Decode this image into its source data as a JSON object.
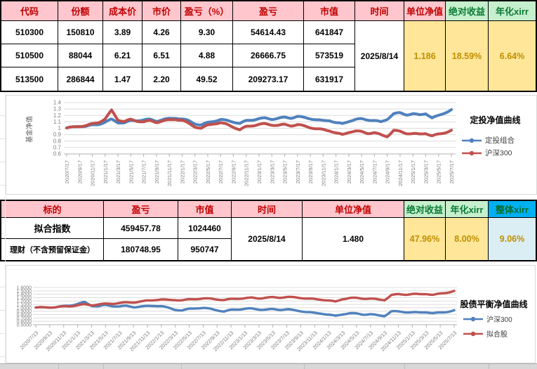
{
  "sheet": {
    "table1": {
      "headers": [
        "代码",
        "份额",
        "成本价",
        "市价",
        "盈亏（%）",
        "盈亏",
        "市值",
        "时间",
        "单位净值",
        "绝对收益",
        "年化xirr"
      ],
      "rows": [
        {
          "code": "510300",
          "shares": "150810",
          "cost": "3.89",
          "price": "4.26",
          "pl_pct": "9.30",
          "pl": "54614.43",
          "mv": "641847"
        },
        {
          "code": "510500",
          "shares": "88044",
          "cost": "6.21",
          "price": "6.51",
          "pl_pct": "4.88",
          "pl": "26666.75",
          "mv": "573519"
        },
        {
          "code": "513500",
          "shares": "286844",
          "cost": "1.47",
          "price": "2.20",
          "pl_pct": "49.52",
          "pl": "209273.17",
          "mv": "631917"
        }
      ],
      "date": "2025/8/14",
      "unit_nav": "1.186",
      "abs_return": "18.59%",
      "annual_xirr": "6.64%"
    },
    "table2": {
      "headers": [
        "标的",
        "盈亏",
        "市值",
        "时间",
        "单位净值",
        "绝对收益",
        "年化xirr",
        "整体xirr"
      ],
      "rows": [
        {
          "name": "拟合指数",
          "pl": "459457.78",
          "mv": "1024460"
        },
        {
          "name": "理财（不含预留保证金）",
          "pl": "180748.95",
          "mv": "950747"
        }
      ],
      "date": "2025/8/14",
      "unit_nav": "1.480",
      "abs_return": "47.96%",
      "annual_xirr": "8.00%",
      "overall_xirr": "9.06%"
    }
  },
  "chart_data": [
    {
      "type": "line",
      "title": "定投净值曲线",
      "ylabel": "基金净值",
      "ylim": [
        0.6,
        1.4
      ],
      "y_ticks": [
        "1.4",
        "1.3",
        "1.2",
        "1.1",
        "1",
        "0.9",
        "0.8",
        "0.7",
        "0.6"
      ],
      "grid": true,
      "legend_position": "right",
      "x_label_rotation": "vertical",
      "values_frequency": "monthly",
      "tick_frequency": "bimonthly",
      "x_tick_labels": [
        "2020/7/17",
        "2020/9/17",
        "2020/11/17",
        "2021/1/17",
        "2021/3/17",
        "2021/5/17",
        "2021/7/17",
        "2021/9/17",
        "2021/11/17",
        "2022/1/17",
        "2022/3/17",
        "2022/5/17",
        "2022/7/17",
        "2022/9/17",
        "2022/11/17",
        "2023/1/17",
        "2023/3/17",
        "2023/5/17",
        "2023/7/17",
        "2023/9/17",
        "2023/11/17",
        "2024/1/17",
        "2024/3/17",
        "2024/5/17",
        "2024/7/17",
        "2024/9/17",
        "2024/11/17",
        "2025/1/17",
        "2025/3/17",
        "2025/5/17",
        "2025/7/17"
      ],
      "series": [
        {
          "name": "定投组合",
          "color": "#4F81BD",
          "values": [
            1.0,
            1.01,
            1.03,
            1.03,
            1.05,
            1.07,
            1.1,
            1.14,
            1.09,
            1.08,
            1.11,
            1.12,
            1.13,
            1.14,
            1.12,
            1.14,
            1.15,
            1.16,
            1.14,
            1.11,
            1.07,
            1.05,
            1.09,
            1.12,
            1.14,
            1.12,
            1.1,
            1.07,
            1.11,
            1.13,
            1.15,
            1.16,
            1.15,
            1.16,
            1.17,
            1.16,
            1.18,
            1.16,
            1.15,
            1.13,
            1.12,
            1.13,
            1.09,
            1.07,
            1.11,
            1.13,
            1.14,
            1.13,
            1.12,
            1.1,
            1.15,
            1.23,
            1.24,
            1.21,
            1.22,
            1.2,
            1.23,
            1.16,
            1.2,
            1.25,
            1.29
          ]
        },
        {
          "name": "沪深300",
          "color": "#C0504D",
          "values": [
            1.0,
            1.01,
            1.03,
            1.04,
            1.07,
            1.1,
            1.15,
            1.28,
            1.13,
            1.1,
            1.13,
            1.11,
            1.1,
            1.12,
            1.1,
            1.12,
            1.13,
            1.14,
            1.12,
            1.07,
            1.02,
            1.0,
            1.05,
            1.08,
            1.09,
            1.06,
            1.02,
            0.97,
            1.02,
            1.04,
            1.06,
            1.07,
            1.06,
            1.05,
            1.06,
            1.04,
            1.05,
            1.03,
            1.01,
            0.99,
            0.98,
            0.97,
            0.93,
            0.9,
            0.94,
            0.95,
            0.94,
            0.92,
            0.93,
            0.9,
            0.88,
            0.97,
            0.95,
            0.92,
            0.91,
            0.9,
            0.92,
            0.88,
            0.91,
            0.94,
            0.97
          ]
        }
      ]
    },
    {
      "type": "line",
      "title": "股债平衡净值曲线",
      "ylabel": "",
      "ylim": [
        0.5,
        1.6
      ],
      "y_ticks": [
        "1.6000",
        "1.5000",
        "1.4000",
        "1.3000",
        "1.2000",
        "1.1000",
        "1.0000",
        "0.9000",
        "0.8000",
        "0.7000",
        "0.6000",
        "0.5000"
      ],
      "grid": true,
      "legend_position": "right",
      "x_label_rotation": "45deg",
      "values_frequency": "monthly",
      "tick_frequency": "bimonthly",
      "x_tick_labels": [
        "2020/7/13",
        "2020/9/13",
        "2020/11/13",
        "2021/1/13",
        "2021/3/13",
        "2021/5/13",
        "2021/7/13",
        "2021/9/13",
        "2021/11/13",
        "2022/1/13",
        "2022/3/13",
        "2022/5/13",
        "2022/7/13",
        "2022/9/13",
        "2022/11/13",
        "2023/1/13",
        "2023/3/13",
        "2023/5/13",
        "2023/7/13",
        "2023/9/13",
        "2023/11/13",
        "2024/1/13",
        "2024/3/13",
        "2024/5/13",
        "2024/7/13",
        "2024/9/13",
        "2024/11/13",
        "2025/1/13",
        "2025/3/13",
        "2025/5/13",
        "2025/7/13"
      ],
      "series": [
        {
          "name": "沪深300",
          "color": "#4F81BD",
          "values": [
            1.0,
            1.0,
            1.01,
            1.02,
            1.05,
            1.08,
            1.12,
            1.17,
            1.06,
            1.04,
            1.07,
            1.05,
            1.04,
            1.06,
            1.03,
            1.04,
            1.05,
            1.06,
            1.04,
            0.99,
            0.94,
            0.92,
            0.97,
            1.0,
            1.0,
            0.97,
            0.93,
            0.88,
            0.93,
            0.95,
            0.97,
            0.98,
            0.96,
            0.95,
            0.96,
            0.94,
            0.95,
            0.92,
            0.9,
            0.87,
            0.85,
            0.84,
            0.8,
            0.76,
            0.81,
            0.83,
            0.82,
            0.8,
            0.81,
            0.78,
            0.77,
            0.9,
            0.89,
            0.87,
            0.86,
            0.85,
            0.87,
            0.84,
            0.86,
            0.89,
            0.93
          ]
        },
        {
          "name": "拟合股",
          "color": "#C0504D",
          "values": [
            1.0,
            1.0,
            1.01,
            1.02,
            1.04,
            1.06,
            1.08,
            1.1,
            1.08,
            1.09,
            1.11,
            1.12,
            1.14,
            1.16,
            1.17,
            1.19,
            1.21,
            1.23,
            1.24,
            1.22,
            1.23,
            1.22,
            1.25,
            1.27,
            1.28,
            1.27,
            1.25,
            1.22,
            1.25,
            1.27,
            1.28,
            1.3,
            1.29,
            1.3,
            1.31,
            1.3,
            1.31,
            1.3,
            1.29,
            1.27,
            1.26,
            1.25,
            1.22,
            1.18,
            1.26,
            1.28,
            1.28,
            1.27,
            1.27,
            1.25,
            1.24,
            1.38,
            1.4,
            1.39,
            1.4,
            1.39,
            1.41,
            1.38,
            1.42,
            1.46,
            1.5
          ]
        }
      ]
    }
  ],
  "colors": {
    "header_pink": "#ffc6cd",
    "header_text_red": "#c00000",
    "header_green": "#c6efce",
    "header_text_green": "#0a7a33",
    "header_cyan": "#00b0f0",
    "value_yellow": "#ffe699",
    "value_text_gold": "#bf8f00",
    "value_lightblue": "#daeef3",
    "series_blue": "#4F81BD",
    "series_red": "#C0504D"
  }
}
